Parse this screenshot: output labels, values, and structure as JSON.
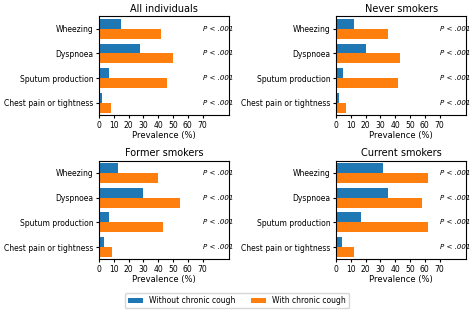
{
  "chart_data": [
    {
      "type": "bar",
      "orientation": "horizontal",
      "title": "All individuals",
      "categories": [
        "Wheezing",
        "Dyspnoea",
        "Sputum production",
        "Chest pain or tightness"
      ],
      "series": [
        {
          "name": "Without chronic cough",
          "values": [
            15,
            28,
            7,
            2
          ]
        },
        {
          "name": "With chronic cough",
          "values": [
            42,
            50,
            46,
            8
          ]
        }
      ],
      "x_label": "Prevalence (%)",
      "xlim": [
        0,
        88
      ],
      "xticks": [
        0,
        10,
        20,
        30,
        40,
        50,
        60,
        70
      ],
      "annotations": [
        "P < .001",
        "P < .001",
        "P < .001",
        "P < .001"
      ]
    },
    {
      "type": "bar",
      "orientation": "horizontal",
      "title": "Never smokers",
      "categories": [
        "Wheezing",
        "Dyspnoea",
        "Sputum production",
        "Chest pain or tightness"
      ],
      "series": [
        {
          "name": "Without chronic cough",
          "values": [
            12,
            20,
            5,
            2
          ]
        },
        {
          "name": "With chronic cough",
          "values": [
            35,
            43,
            42,
            7
          ]
        }
      ],
      "x_label": "Prevalence (%)",
      "xlim": [
        0,
        88
      ],
      "xticks": [
        0,
        10,
        20,
        30,
        40,
        50,
        60,
        70
      ],
      "annotations": [
        "P < .001",
        "P < .001",
        "P < .001",
        "P < .001"
      ]
    },
    {
      "type": "bar",
      "orientation": "horizontal",
      "title": "Former smokers",
      "categories": [
        "Wheezing",
        "Dyspnoea",
        "Sputum production",
        "Chest pain or tightness"
      ],
      "series": [
        {
          "name": "Without chronic cough",
          "values": [
            13,
            30,
            7,
            3
          ]
        },
        {
          "name": "With chronic cough",
          "values": [
            40,
            55,
            43,
            9
          ]
        }
      ],
      "x_label": "Prevalence (%)",
      "xlim": [
        0,
        88
      ],
      "xticks": [
        0,
        10,
        20,
        30,
        40,
        50,
        60,
        70
      ],
      "annotations": [
        "P < .001",
        "P < .001",
        "P < .001",
        "P < .001"
      ]
    },
    {
      "type": "bar",
      "orientation": "horizontal",
      "title": "Current smokers",
      "categories": [
        "Wheezing",
        "Dyspnoea",
        "Sputum production",
        "Chest pain or tightness"
      ],
      "series": [
        {
          "name": "Without chronic cough",
          "values": [
            32,
            35,
            17,
            4
          ]
        },
        {
          "name": "With chronic cough",
          "values": [
            62,
            58,
            62,
            12
          ]
        }
      ],
      "x_label": "Prevalence (%)",
      "xlim": [
        0,
        88
      ],
      "xticks": [
        0,
        10,
        20,
        30,
        40,
        50,
        60,
        70
      ],
      "annotations": [
        "P < .001",
        "P < .001",
        "P < .001",
        "P < .001"
      ]
    }
  ]
}
